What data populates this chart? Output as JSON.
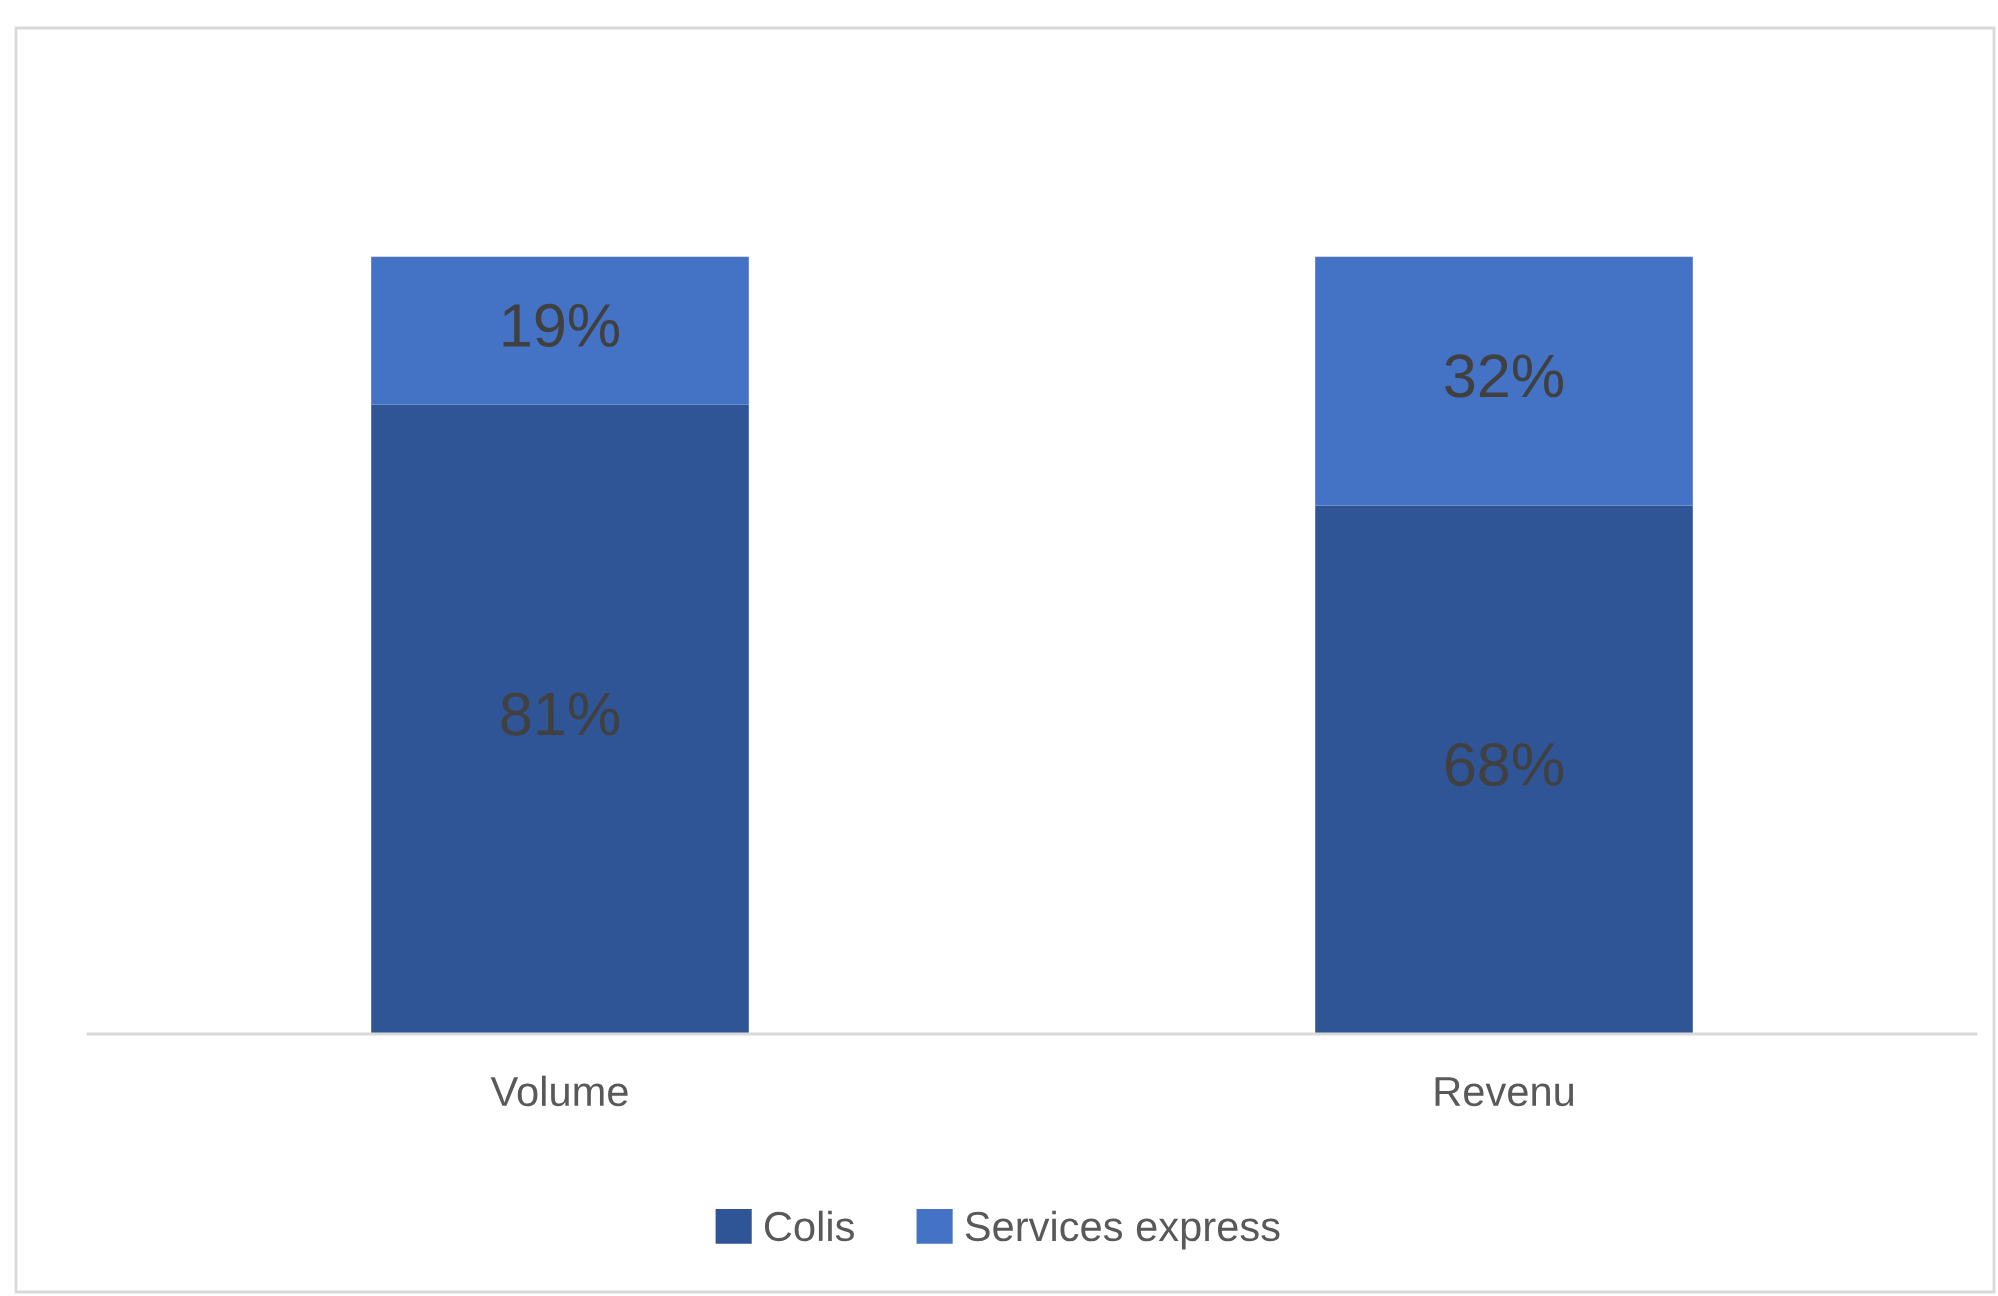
{
  "chart_data": {
    "type": "bar",
    "stacked": true,
    "categories": [
      "Volume",
      "Revenu"
    ],
    "tick_labels": "x",
    "legend": "bottom",
    "grid": false,
    "series": [
      {
        "name": "Colis",
        "color": "#2f5597",
        "values": [
          81,
          68
        ],
        "value_labels": [
          "81%",
          "68%"
        ]
      },
      {
        "name": "Services express",
        "color": "#4472c4",
        "values": [
          19,
          32
        ],
        "value_labels": [
          "19%",
          "32%"
        ]
      }
    ]
  }
}
